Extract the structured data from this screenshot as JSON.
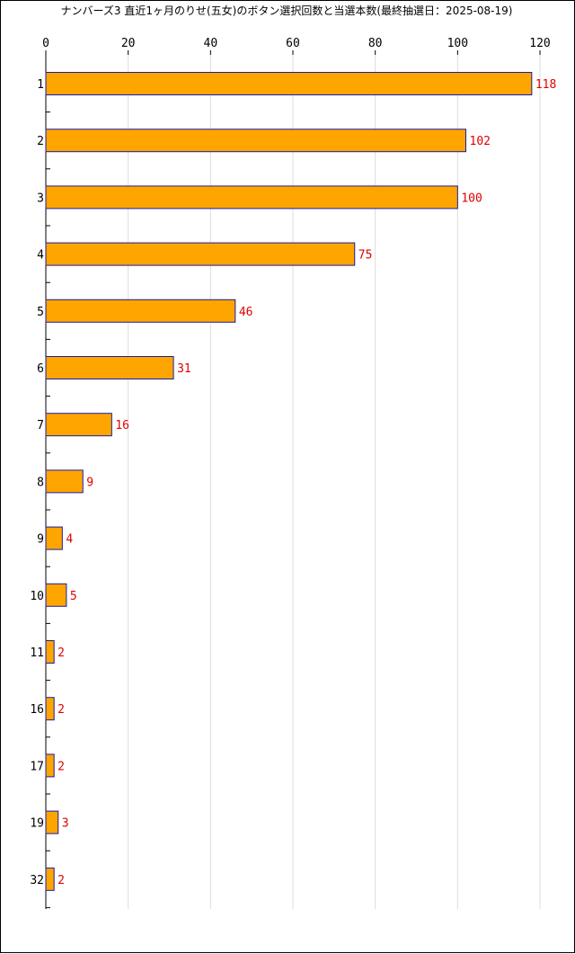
{
  "chart_data": {
    "type": "bar",
    "orientation": "horizontal",
    "title": "ナンバーズ3 直近1ヶ月のりせ(五女)のボタン選択回数と当選本数(最終抽選日：2025-08-19)",
    "categories": [
      "1",
      "2",
      "3",
      "4",
      "5",
      "6",
      "7",
      "8",
      "9",
      "10",
      "11",
      "16",
      "17",
      "19",
      "32"
    ],
    "values": [
      118,
      102,
      100,
      75,
      46,
      31,
      16,
      9,
      4,
      5,
      2,
      2,
      2,
      3,
      2
    ],
    "xlim": [
      0,
      120
    ],
    "x_ticks": [
      0,
      20,
      40,
      60,
      80,
      100,
      120
    ],
    "x_axis_position": "top",
    "grid": true,
    "data_labels": true,
    "colors": {
      "bar_fill": "#FFA500",
      "bar_stroke": "#1A1AA6",
      "value_label": "#E00000",
      "grid": "#DDDDDD",
      "axis": "#000000"
    }
  }
}
